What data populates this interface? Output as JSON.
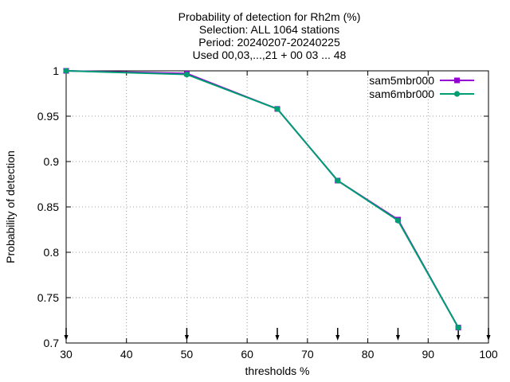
{
  "chart_data": {
    "type": "line",
    "title_lines": [
      "Probability of detection  for Rh2m (%)",
      "Selection: ALL   1064 stations",
      "Period: 20240207-20240225",
      "Used 00,03,...,21 + 00 03 ... 48"
    ],
    "xlabel": "thresholds %",
    "ylabel": "Probability of detection",
    "xlim": [
      30,
      100
    ],
    "ylim": [
      0.7,
      1.0
    ],
    "xticks": [
      30,
      40,
      50,
      60,
      70,
      80,
      90,
      100
    ],
    "yticks": [
      0.7,
      0.75,
      0.8,
      0.85,
      0.9,
      0.95,
      1.0
    ],
    "ytick_labels": [
      "0.7",
      "0.75",
      "0.8",
      "0.85",
      "0.9",
      "0.95",
      "1"
    ],
    "grid": true,
    "legend_position": "top-right",
    "arrow_marks_x": [
      30,
      50,
      65,
      75,
      85,
      95,
      100
    ],
    "series": [
      {
        "name": "sam5mbr000",
        "color": "#9400d3",
        "marker": "filled-square",
        "x": [
          30,
          50,
          65,
          75,
          85,
          95
        ],
        "y": [
          1.0,
          0.997,
          0.958,
          0.879,
          0.836,
          0.717
        ]
      },
      {
        "name": "sam6mbr000",
        "color": "#009e73",
        "marker": "filled-circle",
        "x": [
          30,
          50,
          65,
          75,
          85,
          95
        ],
        "y": [
          1.0,
          0.996,
          0.958,
          0.879,
          0.835,
          0.717
        ]
      }
    ]
  }
}
